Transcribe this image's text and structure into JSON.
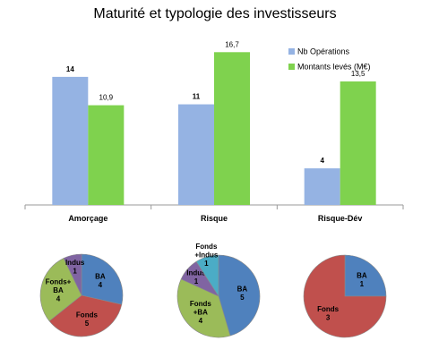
{
  "chart_data": [
    {
      "type": "bar",
      "title": "Maturité et typologie des investisseurs",
      "categories": [
        "Amorçage",
        "Risque",
        "Risque-Dév"
      ],
      "series": [
        {
          "name": "Nb Opérations",
          "values": [
            14,
            11,
            4
          ],
          "labels": [
            "14",
            "11",
            "4"
          ],
          "color": "#95b3e3"
        },
        {
          "name": "Montants levés (M€)",
          "values": [
            10.9,
            16.7,
            13.5
          ],
          "labels": [
            "10,9",
            "16,7",
            "13,5"
          ],
          "color": "#7fd24e"
        }
      ],
      "ylim": [
        0,
        18
      ],
      "grid": false,
      "legend": "top-right"
    },
    {
      "type": "pie",
      "slices": [
        {
          "label": "BA",
          "value": 4,
          "text": "4",
          "color": "#4f81bd"
        },
        {
          "label": "Fonds",
          "value": 5,
          "text": "5",
          "color": "#c0504d"
        },
        {
          "label": "Fonds+ BA",
          "value": 4,
          "text": "4",
          "color": "#9bbb59"
        },
        {
          "label": "Indus",
          "value": 1,
          "text": "1",
          "color": "#8064a2"
        }
      ]
    },
    {
      "type": "pie",
      "slices": [
        {
          "label": "BA",
          "value": 5,
          "text": "5",
          "color": "#4f81bd"
        },
        {
          "label": "Fonds +BA",
          "value": 4,
          "text": "4",
          "color": "#9bbb59"
        },
        {
          "label": "Indus",
          "value": 1,
          "text": "1",
          "color": "#8064a2"
        },
        {
          "label": "Fonds +Indus",
          "value": 1,
          "text": "1",
          "color": "#4bacc6"
        }
      ]
    },
    {
      "type": "pie",
      "slices": [
        {
          "label": "BA",
          "value": 1,
          "text": "1",
          "color": "#4f81bd"
        },
        {
          "label": "Fonds",
          "value": 3,
          "text": "3",
          "color": "#c0504d"
        }
      ]
    }
  ]
}
